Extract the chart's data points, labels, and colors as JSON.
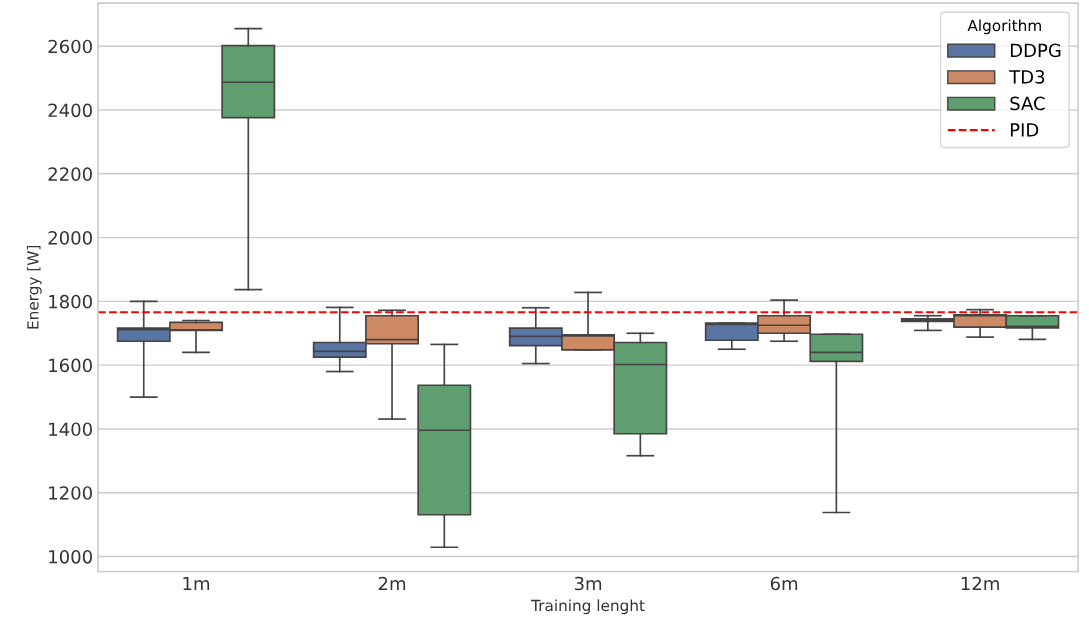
{
  "chart_data": {
    "type": "box",
    "xlabel": "Training lenght",
    "ylabel": "Energy [W]",
    "legend_title": "Algorithm",
    "legend": "top right",
    "grid": "y",
    "categories": [
      "1m",
      "2m",
      "3m",
      "6m",
      "12m"
    ],
    "ylim": [
      953,
      2735
    ],
    "yticks": [
      1000,
      1200,
      1400,
      1600,
      1800,
      2000,
      2200,
      2400,
      2600
    ],
    "series": [
      {
        "name": "DDPG",
        "color": "#5875a4",
        "boxes": [
          {
            "low": 1500,
            "q1": 1675,
            "median": 1711,
            "q3": 1716,
            "high": 1800
          },
          {
            "low": 1580,
            "q1": 1625,
            "median": 1643,
            "q3": 1671,
            "high": 1781
          },
          {
            "low": 1605,
            "q1": 1661,
            "median": 1690,
            "q3": 1716,
            "high": 1780
          },
          {
            "low": 1650,
            "q1": 1678,
            "median": 1728,
            "q3": 1732,
            "high": 1732
          },
          {
            "low": 1709,
            "q1": 1737,
            "median": 1741,
            "q3": 1745,
            "high": 1755
          }
        ]
      },
      {
        "name": "TD3",
        "color": "#cc8963",
        "boxes": [
          {
            "low": 1640,
            "q1": 1709,
            "median": 1711,
            "q3": 1734,
            "high": 1740
          },
          {
            "low": 1431,
            "q1": 1667,
            "median": 1680,
            "q3": 1755,
            "high": 1772
          },
          {
            "low": 1648,
            "q1": 1648,
            "median": 1692,
            "q3": 1695,
            "high": 1828
          },
          {
            "low": 1675,
            "q1": 1700,
            "median": 1725,
            "q3": 1755,
            "high": 1804
          },
          {
            "low": 1688,
            "q1": 1719,
            "median": 1755,
            "q3": 1758,
            "high": 1774
          }
        ]
      },
      {
        "name": "SAC",
        "color": "#5f9e6e",
        "boxes": [
          {
            "low": 1837,
            "q1": 2376,
            "median": 2487,
            "q3": 2602,
            "high": 2655
          },
          {
            "low": 1029,
            "q1": 1131,
            "median": 1396,
            "q3": 1537,
            "high": 1665
          },
          {
            "low": 1316,
            "q1": 1385,
            "median": 1602,
            "q3": 1671,
            "high": 1700
          },
          {
            "low": 1138,
            "q1": 1612,
            "median": 1640,
            "q3": 1697,
            "high": 1697
          },
          {
            "low": 1681,
            "q1": 1717,
            "median": 1722,
            "q3": 1755,
            "high": 1755
          }
        ]
      }
    ],
    "ref_lines": [
      {
        "axis": "y",
        "value": 1766,
        "label": "PID",
        "color": "#ff0000",
        "line_style": "dashed"
      }
    ]
  }
}
